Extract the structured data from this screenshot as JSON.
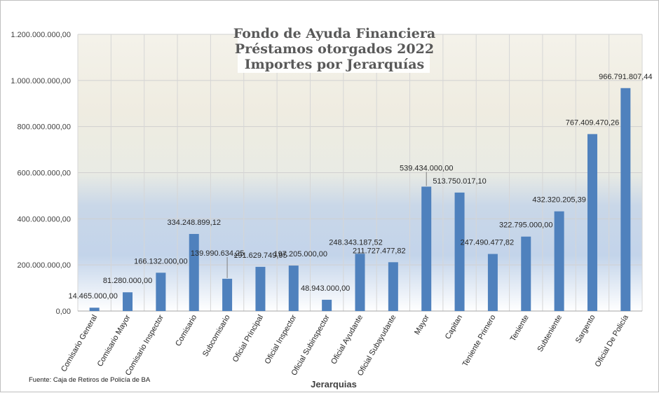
{
  "chart_data": {
    "type": "bar",
    "title_lines": [
      "Fondo de Ayuda Financiera",
      "Préstamos otorgados 2022",
      "Importes por Jerarquías"
    ],
    "xlabel": "Jerarquias",
    "ylabel": "",
    "source": "Fuente: Caja de Retiros de Policía de BA",
    "ylim": [
      0,
      1200000000
    ],
    "yticks": [
      0,
      200000000,
      400000000,
      600000000,
      800000000,
      1000000000,
      1200000000
    ],
    "ytick_labels": [
      "0,00",
      "200.000.000,00",
      "400.000.000,00",
      "600.000.000,00",
      "800.000.000,00",
      "1.000.000.000,00",
      "1.200.000.000,00"
    ],
    "grid": true,
    "bar_color": "#4F81BD",
    "categories": [
      "Comisario General",
      "Comisario Mayor",
      "Comisario Inspector",
      "Comisario",
      "Subcomisario",
      "Oficial Principal",
      "Oficial Inspector",
      "Oficial Subinspector",
      "Oficial Ayudante",
      "Oficial Subayudante",
      "Mayor",
      "Capitan",
      "Teniente Primero",
      "Teniente",
      "Subteniente",
      "Sargento",
      "Oficial De Policía"
    ],
    "values": [
      14465000.0,
      81280000.0,
      166132000.0,
      334248899.12,
      139990634.25,
      191629749.95,
      197205000.0,
      48943000.0,
      248343187.52,
      211727477.82,
      539434000.0,
      513750017.1,
      247490477.82,
      322795000.0,
      432320205.39,
      767409470.26,
      966791807.44
    ],
    "value_labels": [
      "14.465.000,00",
      "81.280.000,00",
      "166.132.000,00",
      "334.248.899,12",
      "139.990.634,25",
      "191.629.749,95",
      "197.205.000,00",
      "48.943.000,00",
      "248.343.187,52",
      "211.727.477,82",
      "539.434.000,00",
      "513.750.017,10",
      "247.490.477,82",
      "322.795.000,00",
      "432.320.205,39",
      "767.409.470,26",
      "966.791.807,44"
    ]
  }
}
